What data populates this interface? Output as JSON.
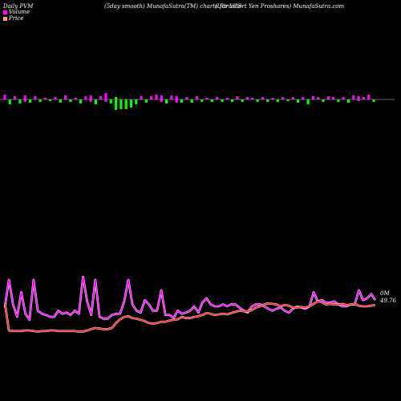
{
  "header": {
    "left": "Daily PVM",
    "center": "(5day smooth) MunafaSutra(TM) charts for VCS",
    "right": "(Ultrashort Yen Proshares) MunafaSutra.com"
  },
  "legend": [
    {
      "label": "Volume",
      "color": "#ff00ff"
    },
    {
      "label": "Price",
      "color": "#ffa07a"
    }
  ],
  "chart_data": {
    "type": "line",
    "series": [
      {
        "name": "Volume",
        "color": "#ff00ff",
        "values": [
          0.5,
          0.95,
          0.55,
          0.35,
          0.75,
          0.4,
          0.3,
          0.95,
          0.45,
          0.4,
          0.38,
          0.35,
          0.35,
          0.45,
          0.4,
          0.42,
          0.38,
          0.45,
          0.4,
          1.0,
          0.6,
          0.38,
          0.95,
          0.35,
          0.32,
          0.32,
          0.38,
          0.4,
          0.4,
          0.6,
          0.95,
          0.55,
          0.45,
          0.42,
          0.62,
          0.55,
          0.45,
          0.45,
          0.78,
          0.38,
          0.38,
          0.33,
          0.45,
          0.4,
          0.42,
          0.45,
          0.52,
          0.42,
          0.58,
          0.65,
          0.55,
          0.52,
          0.52,
          0.55,
          0.52,
          0.55,
          0.55,
          0.5,
          0.45,
          0.42,
          0.52,
          0.55,
          0.55,
          0.52,
          0.48,
          0.45,
          0.48,
          0.5,
          0.45,
          0.42,
          0.48,
          0.52,
          0.5,
          0.48,
          0.52,
          0.75,
          0.6,
          0.62,
          0.58,
          0.58,
          0.6,
          0.55,
          0.52,
          0.52,
          0.55,
          0.55,
          0.78,
          0.62,
          0.65,
          0.72,
          0.62
        ]
      },
      {
        "name": "Price",
        "color": "#ff2020",
        "values": [
          0.58,
          0.13,
          0.12,
          0.12,
          0.12,
          0.13,
          0.13,
          0.12,
          0.11,
          0.12,
          0.12,
          0.13,
          0.13,
          0.12,
          0.12,
          0.12,
          0.12,
          0.12,
          0.11,
          0.11,
          0.13,
          0.15,
          0.17,
          0.16,
          0.15,
          0.15,
          0.17,
          0.25,
          0.31,
          0.35,
          0.36,
          0.33,
          0.32,
          0.3,
          0.28,
          0.25,
          0.24,
          0.25,
          0.27,
          0.27,
          0.29,
          0.3,
          0.31,
          0.35,
          0.33,
          0.33,
          0.35,
          0.36,
          0.38,
          0.41,
          0.4,
          0.38,
          0.39,
          0.4,
          0.39,
          0.41,
          0.43,
          0.45,
          0.44,
          0.44,
          0.46,
          0.5,
          0.52,
          0.55,
          0.57,
          0.56,
          0.55,
          0.52,
          0.54,
          0.53,
          0.5,
          0.5,
          0.51,
          0.5,
          0.52,
          0.56,
          0.6,
          0.59,
          0.55,
          0.56,
          0.55,
          0.55,
          0.56,
          0.54,
          0.55,
          0.56,
          0.53,
          0.52,
          0.52,
          0.53,
          0.54
        ]
      }
    ],
    "pvm_bars": [
      {
        "up": 6,
        "down": 0,
        "color": "#ff00ff"
      },
      {
        "up": 0,
        "down": 6,
        "color": "#00ff00"
      },
      {
        "up": 4,
        "down": 0,
        "color": "#ff00ff"
      },
      {
        "up": 0,
        "down": 5,
        "color": "#00ff00"
      },
      {
        "up": 5,
        "down": 3,
        "color": "#ff00ff"
      },
      {
        "up": 0,
        "down": 4,
        "color": "#00ff00"
      },
      {
        "up": 4,
        "down": 0,
        "color": "#ff00ff"
      },
      {
        "up": 0,
        "down": 3,
        "color": "#00ff00"
      },
      {
        "up": 2,
        "down": 0,
        "color": "#ff00ff"
      },
      {
        "up": 0,
        "down": 2,
        "color": "#00ff00"
      },
      {
        "up": 3,
        "down": 0,
        "color": "#ff00ff"
      },
      {
        "up": 0,
        "down": 4,
        "color": "#00ff00"
      },
      {
        "up": 5,
        "down": 0,
        "color": "#ff00ff"
      },
      {
        "up": 0,
        "down": 3,
        "color": "#00ff00"
      },
      {
        "up": 2,
        "down": 0,
        "color": "#ff00ff"
      },
      {
        "up": 0,
        "down": 5,
        "color": "#00ff00"
      },
      {
        "up": 4,
        "down": 0,
        "color": "#ff00ff"
      },
      {
        "up": 5,
        "down": 3,
        "color": "#ff00ff"
      },
      {
        "up": 0,
        "down": 6,
        "color": "#00ff00"
      },
      {
        "up": 4,
        "down": 0,
        "color": "#ff00ff"
      },
      {
        "up": 8,
        "down": 3,
        "color": "#ff00ff"
      },
      {
        "up": 0,
        "down": 5,
        "color": "#00ff00"
      },
      {
        "up": 3,
        "down": 13,
        "color": "#00ff00"
      },
      {
        "up": 0,
        "down": 12,
        "color": "#00ff00"
      },
      {
        "up": 0,
        "down": 12,
        "color": "#00ff00"
      },
      {
        "up": 0,
        "down": 10,
        "color": "#00ff00"
      },
      {
        "up": 0,
        "down": 6,
        "color": "#00ff00"
      },
      {
        "up": 4,
        "down": 0,
        "color": "#ff00ff"
      },
      {
        "up": 0,
        "down": 4,
        "color": "#00ff00"
      },
      {
        "up": 4,
        "down": 0,
        "color": "#ff00ff"
      },
      {
        "up": 6,
        "down": 0,
        "color": "#ff00ff"
      },
      {
        "up": 5,
        "down": 3,
        "color": "#ff00ff"
      },
      {
        "up": 0,
        "down": 5,
        "color": "#00ff00"
      },
      {
        "up": 5,
        "down": 0,
        "color": "#ff00ff"
      },
      {
        "up": 4,
        "down": 4,
        "color": "#ff00ff"
      },
      {
        "up": 0,
        "down": 4,
        "color": "#00ff00"
      },
      {
        "up": 3,
        "down": 0,
        "color": "#ff00ff"
      },
      {
        "up": 0,
        "down": 4,
        "color": "#00ff00"
      },
      {
        "up": 4,
        "down": 0,
        "color": "#ff00ff"
      },
      {
        "up": 0,
        "down": 3,
        "color": "#00ff00"
      },
      {
        "up": 2,
        "down": 0,
        "color": "#ff00ff"
      },
      {
        "up": 0,
        "down": 3,
        "color": "#00ff00"
      },
      {
        "up": 3,
        "down": 0,
        "color": "#ff00ff"
      },
      {
        "up": 0,
        "down": 3,
        "color": "#00ff00"
      },
      {
        "up": 2,
        "down": 0,
        "color": "#ff00ff"
      },
      {
        "up": 0,
        "down": 3,
        "color": "#00ff00"
      },
      {
        "up": 4,
        "down": 0,
        "color": "#ff00ff"
      },
      {
        "up": 0,
        "down": 3,
        "color": "#00ff00"
      },
      {
        "up": 3,
        "down": 0,
        "color": "#ff00ff"
      },
      {
        "up": 2,
        "down": 0,
        "color": "#ff00ff"
      },
      {
        "up": 0,
        "down": 3,
        "color": "#00ff00"
      },
      {
        "up": 3,
        "down": 0,
        "color": "#ff00ff"
      },
      {
        "up": 0,
        "down": 3,
        "color": "#00ff00"
      },
      {
        "up": 2,
        "down": 0,
        "color": "#ff00ff"
      },
      {
        "up": 0,
        "down": 3,
        "color": "#00ff00"
      },
      {
        "up": 3,
        "down": 0,
        "color": "#ff00ff"
      },
      {
        "up": 0,
        "down": 2,
        "color": "#00ff00"
      },
      {
        "up": 3,
        "down": 0,
        "color": "#ff00ff"
      },
      {
        "up": 0,
        "down": 4,
        "color": "#00ff00"
      },
      {
        "up": 3,
        "down": 0,
        "color": "#ff00ff"
      },
      {
        "up": 0,
        "down": 6,
        "color": "#00ff00"
      },
      {
        "up": 4,
        "down": 0,
        "color": "#ff00ff"
      },
      {
        "up": 3,
        "down": 0,
        "color": "#ff00ff"
      },
      {
        "up": 0,
        "down": 3,
        "color": "#00ff00"
      },
      {
        "up": 4,
        "down": 0,
        "color": "#ff00ff"
      },
      {
        "up": 3,
        "down": 0,
        "color": "#ff00ff"
      },
      {
        "up": 0,
        "down": 3,
        "color": "#00ff00"
      },
      {
        "up": 3,
        "down": 0,
        "color": "#ff00ff"
      },
      {
        "up": 0,
        "down": 4,
        "color": "#00ff00"
      },
      {
        "up": 5,
        "down": 0,
        "color": "#ff00ff"
      },
      {
        "up": 4,
        "down": 2,
        "color": "#ff00ff"
      },
      {
        "up": 3,
        "down": 0,
        "color": "#ff00ff"
      },
      {
        "up": 6,
        "down": 0,
        "color": "#ff00ff"
      },
      {
        "up": 0,
        "down": 3,
        "color": "#00ff00"
      }
    ],
    "annotation": {
      "line1": "0M",
      "line2": "49.76"
    }
  }
}
